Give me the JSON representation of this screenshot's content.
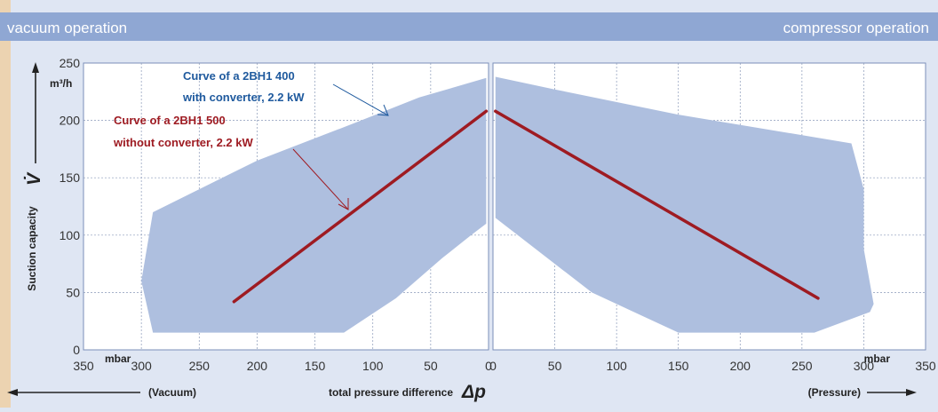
{
  "header": {
    "left_label": "vacuum operation",
    "right_label": "compressor operation"
  },
  "colors": {
    "header_band": "#8fa7d3",
    "page_bg": "#dfe6f3",
    "plot_bg": "#ffffff",
    "envelope_fill": "#aebfdf",
    "curve_500": "#9e1b22",
    "annotation_400": "#1f5a9e",
    "accent_orange": "#f5b041"
  },
  "chart_data": {
    "type": "area",
    "ylabel": "Suction capacity",
    "ylabel_symbol": "V̇",
    "y_unit": "m³/h",
    "ylim": [
      0,
      250
    ],
    "y_ticks": [
      0,
      50,
      100,
      150,
      200,
      250
    ],
    "x_unit": "mbar",
    "xlabel": "total pressure difference",
    "xlabel_symbol": "Δp",
    "left_panel": {
      "side": "Vacuum",
      "side_label": "(Vacuum)",
      "xlim": [
        350,
        0
      ],
      "x_ticks": [
        350,
        300,
        250,
        200,
        150,
        100,
        50,
        0
      ]
    },
    "right_panel": {
      "side": "Pressure",
      "side_label": "(Pressure)",
      "xlim": [
        0,
        350
      ],
      "x_ticks": [
        0,
        50,
        100,
        150,
        200,
        250,
        300,
        350
      ]
    },
    "grid": true,
    "series": [
      {
        "name": "Curve of a 2BH1 400 with converter, 2.2 kW",
        "label_lines": [
          "Curve of a 2BH1 400",
          "with converter, 2.2 kW"
        ],
        "kind": "envelope",
        "vacuum_outline": [
          [
            2,
            237
          ],
          [
            60,
            220
          ],
          [
            115,
            198
          ],
          [
            200,
            165
          ],
          [
            290,
            120
          ],
          [
            300,
            60
          ],
          [
            290,
            15
          ],
          [
            125,
            15
          ],
          [
            80,
            45
          ],
          [
            40,
            80
          ],
          [
            15,
            100
          ],
          [
            2,
            110
          ]
        ],
        "pressure_outline": [
          [
            2,
            238
          ],
          [
            50,
            227
          ],
          [
            150,
            205
          ],
          [
            290,
            180
          ],
          [
            300,
            140
          ],
          [
            300,
            88
          ],
          [
            308,
            40
          ],
          [
            305,
            33
          ],
          [
            260,
            15
          ],
          [
            150,
            15
          ],
          [
            120,
            30
          ],
          [
            80,
            50
          ],
          [
            50,
            75
          ],
          [
            20,
            100
          ],
          [
            2,
            115
          ]
        ]
      },
      {
        "name": "Curve of a 2BH1 500 without converter, 2.2 kW",
        "label_lines": [
          "Curve of a 2BH1 500",
          "without converter, 2.2 kW"
        ],
        "kind": "line",
        "vacuum": [
          [
            220,
            42
          ],
          [
            2,
            208
          ]
        ],
        "pressure": [
          [
            2,
            208
          ],
          [
            263,
            45
          ]
        ]
      }
    ]
  }
}
